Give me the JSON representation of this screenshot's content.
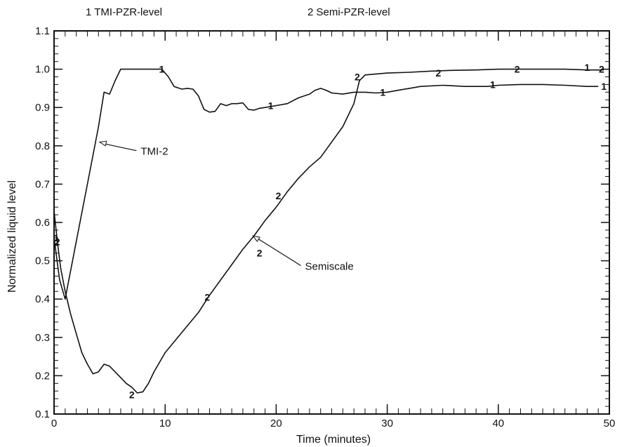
{
  "chart_data": {
    "type": "line",
    "title": "",
    "xlabel": "Time (minutes)",
    "ylabel": "Normalized liquid level",
    "xlim": [
      0,
      50
    ],
    "ylim": [
      0.1,
      1.1
    ],
    "xticks": [
      "0",
      "10",
      "20",
      "30",
      "40",
      "50"
    ],
    "yticks": [
      "0.1",
      "0.2",
      "0.3",
      "0.4",
      "0.5",
      "0.6",
      "0.7",
      "0.8",
      "0.9",
      "1.0",
      "1.1"
    ],
    "grid": false,
    "legend": {
      "placement": "top",
      "entries": [
        {
          "marker": "1",
          "label": "1 TMI-PZR-level"
        },
        {
          "marker": "2",
          "label": "2 Semi-PZR-level"
        }
      ]
    },
    "series": [
      {
        "name": "TMI-PZR-level",
        "marker": "1",
        "points": [
          [
            0,
            0.56
          ],
          [
            0.5,
            0.45
          ],
          [
            1,
            0.4
          ],
          [
            2,
            0.55
          ],
          [
            3,
            0.7
          ],
          [
            4,
            0.85
          ],
          [
            4.5,
            0.94
          ],
          [
            5,
            0.935
          ],
          [
            5.5,
            0.97
          ],
          [
            6,
            1.0
          ],
          [
            7,
            1.0
          ],
          [
            8,
            1.0
          ],
          [
            9,
            1.0
          ],
          [
            9.7,
            1.0
          ],
          [
            10.3,
            0.98
          ],
          [
            10.8,
            0.955
          ],
          [
            11.5,
            0.948
          ],
          [
            12,
            0.95
          ],
          [
            12.5,
            0.948
          ],
          [
            13,
            0.93
          ],
          [
            13.5,
            0.895
          ],
          [
            14,
            0.888
          ],
          [
            14.5,
            0.89
          ],
          [
            15,
            0.91
          ],
          [
            15.5,
            0.905
          ],
          [
            16,
            0.91
          ],
          [
            16.5,
            0.91
          ],
          [
            17,
            0.912
          ],
          [
            17.5,
            0.895
          ],
          [
            18,
            0.893
          ],
          [
            18.5,
            0.898
          ],
          [
            19,
            0.9
          ],
          [
            20,
            0.905
          ],
          [
            21,
            0.91
          ],
          [
            22,
            0.925
          ],
          [
            23,
            0.935
          ],
          [
            23.5,
            0.945
          ],
          [
            24,
            0.95
          ],
          [
            24.5,
            0.945
          ],
          [
            25,
            0.938
          ],
          [
            26,
            0.935
          ],
          [
            27,
            0.94
          ],
          [
            28,
            0.94
          ],
          [
            29,
            0.938
          ],
          [
            30,
            0.94
          ],
          [
            31,
            0.945
          ],
          [
            32,
            0.95
          ],
          [
            33,
            0.955
          ],
          [
            35,
            0.958
          ],
          [
            37,
            0.955
          ],
          [
            39,
            0.955
          ],
          [
            40,
            0.958
          ],
          [
            42,
            0.96
          ],
          [
            44,
            0.96
          ],
          [
            46,
            0.958
          ],
          [
            48,
            0.955
          ],
          [
            49,
            0.955
          ]
        ],
        "marker_positions": [
          [
            0.2,
            0.56
          ],
          [
            9.7,
            1.0
          ],
          [
            19.5,
            0.905
          ],
          [
            29.6,
            0.94
          ],
          [
            39.5,
            0.96
          ],
          [
            48,
            1.005
          ],
          [
            49.5,
            0.955
          ]
        ]
      },
      {
        "name": "Semi-PZR-level",
        "marker": "2",
        "points": [
          [
            0,
            0.63
          ],
          [
            0.3,
            0.55
          ],
          [
            0.6,
            0.48
          ],
          [
            1,
            0.42
          ],
          [
            1.5,
            0.36
          ],
          [
            2,
            0.31
          ],
          [
            2.5,
            0.26
          ],
          [
            3,
            0.23
          ],
          [
            3.5,
            0.205
          ],
          [
            4,
            0.21
          ],
          [
            4.5,
            0.23
          ],
          [
            5,
            0.225
          ],
          [
            5.5,
            0.21
          ],
          [
            6,
            0.195
          ],
          [
            6.5,
            0.18
          ],
          [
            7,
            0.17
          ],
          [
            7.5,
            0.155
          ],
          [
            8,
            0.158
          ],
          [
            8.5,
            0.18
          ],
          [
            9,
            0.21
          ],
          [
            10,
            0.26
          ],
          [
            11,
            0.295
          ],
          [
            12,
            0.33
          ],
          [
            13,
            0.365
          ],
          [
            14,
            0.41
          ],
          [
            15,
            0.45
          ],
          [
            16,
            0.49
          ],
          [
            17,
            0.53
          ],
          [
            18,
            0.565
          ],
          [
            19,
            0.605
          ],
          [
            20,
            0.64
          ],
          [
            21,
            0.68
          ],
          [
            22,
            0.715
          ],
          [
            23,
            0.745
          ],
          [
            24,
            0.77
          ],
          [
            25,
            0.81
          ],
          [
            26,
            0.85
          ],
          [
            27,
            0.91
          ],
          [
            27.5,
            0.97
          ],
          [
            28,
            0.985
          ],
          [
            30,
            0.99
          ],
          [
            32,
            0.992
          ],
          [
            34,
            0.995
          ],
          [
            36,
            0.997
          ],
          [
            38,
            0.998
          ],
          [
            40,
            1.0
          ],
          [
            42,
            1.0
          ],
          [
            44,
            1.0
          ],
          [
            46,
            1.0
          ],
          [
            48,
            0.998
          ],
          [
            49.5,
            0.998
          ]
        ],
        "marker_positions": [
          [
            0.3,
            0.55
          ],
          [
            7,
            0.15
          ],
          [
            13.8,
            0.405
          ],
          [
            18.5,
            0.52
          ],
          [
            20.2,
            0.67
          ],
          [
            27.3,
            0.98
          ],
          [
            34.6,
            0.99
          ],
          [
            41.7,
            1.0
          ],
          [
            49.3,
            1.0
          ]
        ]
      }
    ],
    "annotations": [
      {
        "text": "TMI-2",
        "arrow_to": [
          4.1,
          0.81
        ],
        "text_at": [
          7.8,
          0.78
        ]
      },
      {
        "text": "Semiscale",
        "arrow_to": [
          17.9,
          0.565
        ],
        "text_at": [
          22.6,
          0.48
        ]
      }
    ]
  }
}
